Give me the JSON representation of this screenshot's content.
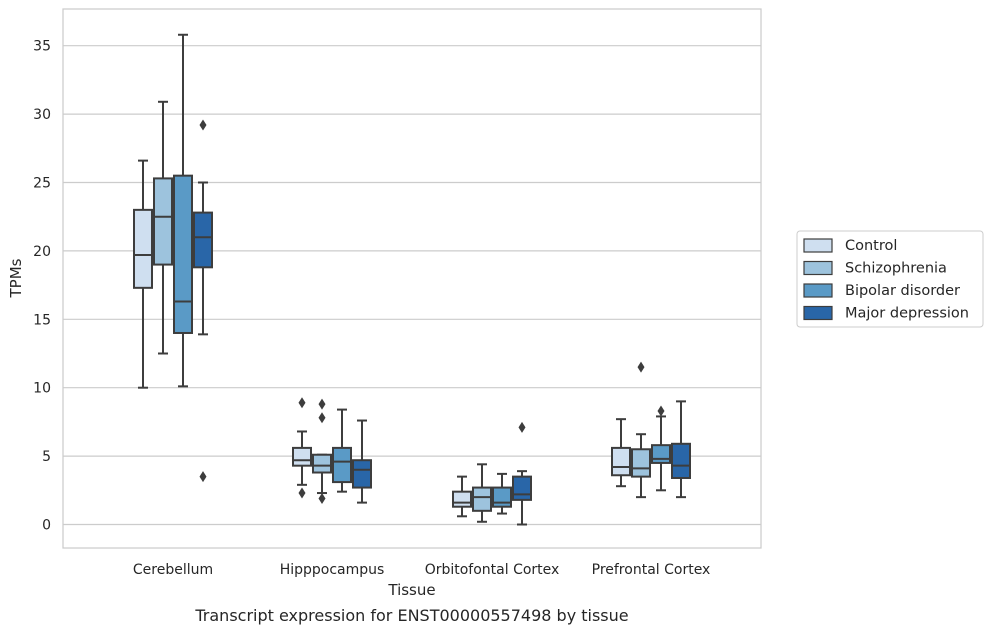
{
  "chart_data": {
    "type": "box",
    "title": "",
    "caption": "Transcript expression for ENST00000557498 by tissue",
    "xlabel": "Tissue",
    "ylabel": "TPMs",
    "ylim": [
      -1.7,
      37.5
    ],
    "yticks": [
      0,
      5,
      10,
      15,
      20,
      25,
      30,
      35
    ],
    "grid": "horizontal",
    "legend_position": "right",
    "categories": [
      "Cerebellum",
      "Hipppocampus",
      "Orbitofontal Cortex",
      "Prefrontal Cortex"
    ],
    "series": [
      {
        "name": "Control",
        "color": "#cfdff0",
        "boxes": [
          {
            "whislo": 10.0,
            "q1": 17.3,
            "med": 19.7,
            "q3": 23.0,
            "whishi": 26.6,
            "fliers": []
          },
          {
            "whislo": 2.9,
            "q1": 4.3,
            "med": 4.7,
            "q3": 5.6,
            "whishi": 6.8,
            "fliers": [
              8.9,
              2.3
            ]
          },
          {
            "whislo": 0.6,
            "q1": 1.3,
            "med": 1.6,
            "q3": 2.4,
            "whishi": 3.5,
            "fliers": []
          },
          {
            "whislo": 2.8,
            "q1": 3.6,
            "med": 4.2,
            "q3": 5.6,
            "whishi": 7.7,
            "fliers": []
          }
        ]
      },
      {
        "name": "Schizophrenia",
        "color": "#9dc3dd",
        "boxes": [
          {
            "whislo": 12.5,
            "q1": 19.0,
            "med": 22.5,
            "q3": 25.3,
            "whishi": 30.9,
            "fliers": []
          },
          {
            "whislo": 2.3,
            "q1": 3.8,
            "med": 4.3,
            "q3": 5.1,
            "whishi": 5.1,
            "fliers": [
              8.8,
              7.8,
              1.9
            ]
          },
          {
            "whislo": 0.2,
            "q1": 1.0,
            "med": 2.0,
            "q3": 2.7,
            "whishi": 4.4,
            "fliers": []
          },
          {
            "whislo": 2.0,
            "q1": 3.5,
            "med": 4.1,
            "q3": 5.5,
            "whishi": 6.6,
            "fliers": [
              11.5
            ]
          }
        ]
      },
      {
        "name": "Bipolar disorder",
        "color": "#5a9ac6",
        "boxes": [
          {
            "whislo": 10.1,
            "q1": 14.0,
            "med": 16.3,
            "q3": 25.5,
            "whishi": 35.8,
            "fliers": []
          },
          {
            "whislo": 2.4,
            "q1": 3.1,
            "med": 4.6,
            "q3": 5.6,
            "whishi": 8.4,
            "fliers": []
          },
          {
            "whislo": 0.8,
            "q1": 1.3,
            "med": 1.6,
            "q3": 2.7,
            "whishi": 3.7,
            "fliers": []
          },
          {
            "whislo": 2.5,
            "q1": 4.5,
            "med": 4.8,
            "q3": 5.8,
            "whishi": 7.9,
            "fliers": [
              8.3
            ]
          }
        ]
      },
      {
        "name": "Major depression",
        "color": "#2966a8",
        "boxes": [
          {
            "whislo": 13.9,
            "q1": 18.8,
            "med": 21.0,
            "q3": 22.8,
            "whishi": 25.0,
            "fliers": [
              29.2,
              3.5
            ]
          },
          {
            "whislo": 1.6,
            "q1": 2.7,
            "med": 4.0,
            "q3": 4.7,
            "whishi": 7.6,
            "fliers": []
          },
          {
            "whislo": 0.0,
            "q1": 1.8,
            "med": 2.2,
            "q3": 3.5,
            "whishi": 3.9,
            "fliers": [
              7.1
            ]
          },
          {
            "whislo": 2.0,
            "q1": 3.4,
            "med": 4.3,
            "q3": 5.9,
            "whishi": 9.0,
            "fliers": []
          }
        ]
      }
    ]
  }
}
